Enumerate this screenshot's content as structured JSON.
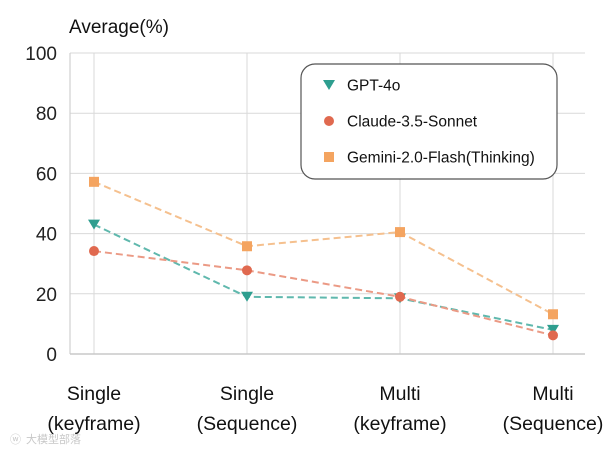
{
  "chart_data": {
    "type": "line",
    "title": "",
    "ylabel": "Average(%)",
    "xlabel": "",
    "ylim": [
      0,
      100
    ],
    "yticks": [
      0,
      20,
      40,
      60,
      80,
      100
    ],
    "grid": true,
    "legend_position": "top-right",
    "categories": [
      [
        "Single",
        "(keyframe)"
      ],
      [
        "Single",
        "(Sequence)"
      ],
      [
        "Multi",
        "(keyframe)"
      ],
      [
        "Multi",
        "(Sequence)"
      ]
    ],
    "series": [
      {
        "name": "GPT-4o",
        "marker": "triangle-down",
        "color": "#2e9e8f",
        "line_color": "#5fb8ad",
        "values": [
          43,
          19,
          18.5,
          8
        ]
      },
      {
        "name": "Claude-3.5-Sonnet",
        "marker": "circle",
        "color": "#e0694f",
        "line_color": "#eb9a85",
        "values": [
          34.2,
          27.8,
          19,
          6.2
        ]
      },
      {
        "name": "Gemini-2.0-Flash(Thinking)",
        "marker": "square",
        "color": "#f4a460",
        "line_color": "#f5c08e",
        "values": [
          57.2,
          35.8,
          40.5,
          13.2
        ]
      }
    ]
  },
  "watermark": "大模型部落"
}
